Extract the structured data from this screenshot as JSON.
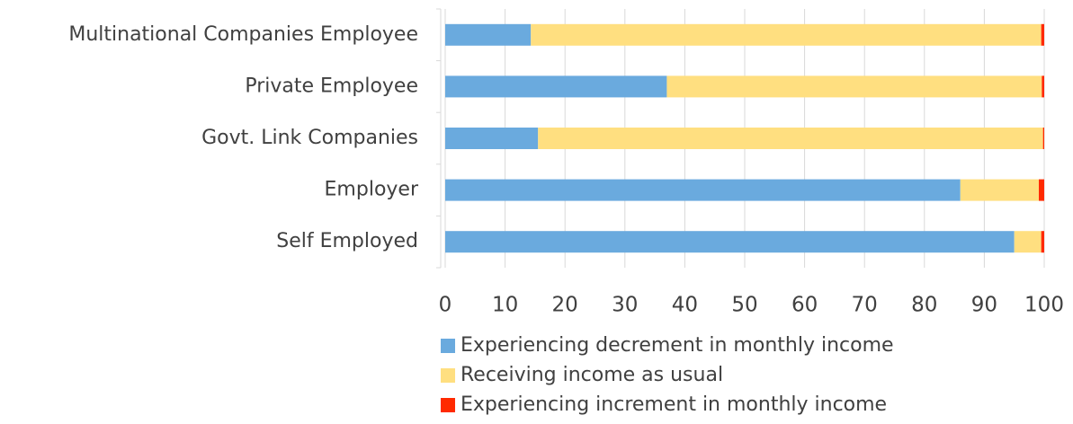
{
  "chart_data": {
    "type": "stacked-bar-horizontal",
    "categories": [
      "Multinational Companies Employee",
      "Private Employee",
      "Govt. Link Companies",
      "Employer",
      "Self Employed"
    ],
    "series": [
      {
        "name": "Experiencing decrement in monthly income",
        "color": "#6aaade",
        "values": [
          14.3,
          37,
          15.5,
          86,
          95
        ]
      },
      {
        "name": "Receiving income as usual",
        "color": "#ffdf80",
        "values": [
          85.2,
          62.6,
          84.3,
          13.1,
          4.5
        ]
      },
      {
        "name": "Experiencing increment in monthly income",
        "color": "#ff2a00",
        "values": [
          0.5,
          0.4,
          0.2,
          0.9,
          0.5
        ]
      }
    ],
    "xlim": [
      0,
      100
    ],
    "xticks": [
      0,
      10,
      20,
      30,
      40,
      50,
      60,
      70,
      80,
      90,
      100
    ],
    "grid": true
  }
}
